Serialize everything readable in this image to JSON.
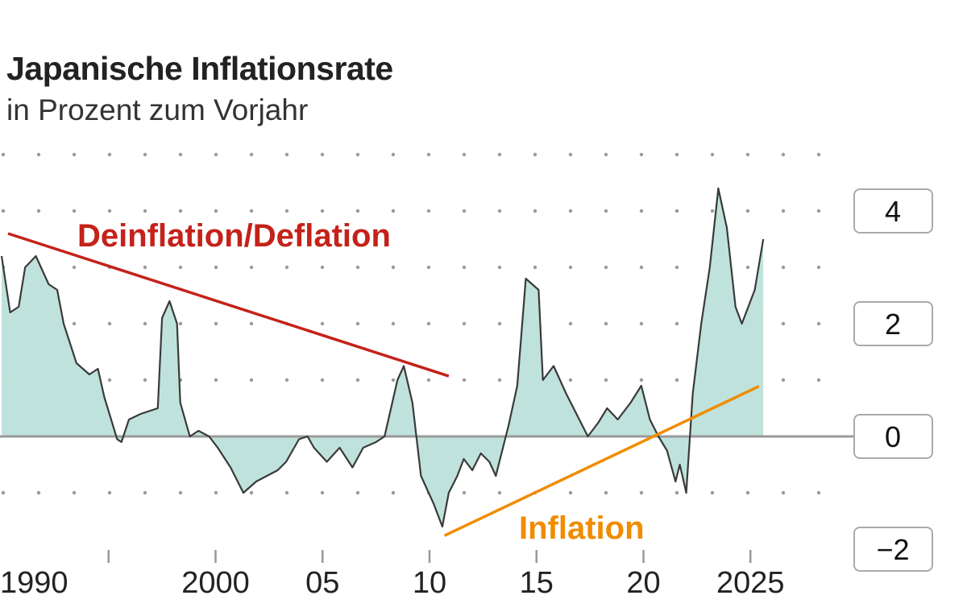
{
  "chart_data": {
    "type": "area",
    "title": "Japanische Inflationsrate",
    "subtitle": "in Prozent zum Vorjahr",
    "xlim": [
      1990,
      2027
    ],
    "ylim": [
      -2,
      5
    ],
    "y_ticks": [
      4,
      2,
      0,
      -2
    ],
    "y_tick_labels": [
      "4",
      "2",
      "0",
      "−2"
    ],
    "x_ticks": [
      1990,
      1995,
      2000,
      2005,
      2010,
      2015,
      2020,
      2025
    ],
    "x_tick_labels": [
      "1990",
      "",
      "2000",
      "05",
      "10",
      "15",
      "20",
      "2025"
    ],
    "grid": "dotted horizontal",
    "colors": {
      "fill": "#bfe3dc",
      "line": "#3a3a3a",
      "zero_line": "#9a9a9a",
      "deflation": "#c4221a",
      "inflation": "#f08c00"
    },
    "series": [
      {
        "x": [
          1990.0,
          1990.4,
          1990.8,
          1991.1,
          1991.6,
          1992.2,
          1992.6,
          1992.9,
          1993.5,
          1994.1,
          1994.5,
          1994.8,
          1995.4,
          1995.6,
          1995.95,
          1996.5,
          1996.9,
          1997.3,
          1997.5,
          1997.85,
          1998.2,
          1998.35,
          1998.8,
          1999.2,
          1999.7,
          2000.1,
          2000.7,
          2001.3,
          2001.9,
          2002.4,
          2002.9,
          2003.3,
          2003.9,
          2004.3,
          2004.6,
          2005.2,
          2005.8,
          2006.4,
          2006.9,
          2007.5,
          2007.9,
          2008.5,
          2008.8,
          2009.2,
          2009.6,
          2010.2,
          2010.6,
          2010.9,
          2011.3,
          2011.6,
          2012.0,
          2012.4,
          2012.8,
          2013.1,
          2013.7,
          2014.1,
          2014.5,
          2015.1,
          2015.3,
          2015.8,
          2016.4,
          2017.0,
          2017.4,
          2017.9,
          2018.3,
          2018.8,
          2019.4,
          2019.9,
          2020.3,
          2020.7,
          2021.1,
          2021.5,
          2021.7,
          2022.0,
          2022.3,
          2022.7,
          2023.1,
          2023.5,
          2023.9,
          2024.3,
          2024.6,
          2025.2,
          2025.6
        ],
        "y": [
          3.2,
          2.2,
          2.3,
          3.0,
          3.2,
          2.7,
          2.6,
          2.0,
          1.3,
          1.1,
          1.2,
          0.7,
          -0.05,
          -0.1,
          0.3,
          0.4,
          0.45,
          0.5,
          2.1,
          2.4,
          2.0,
          0.6,
          0.0,
          0.1,
          0.0,
          -0.2,
          -0.55,
          -1.0,
          -0.8,
          -0.7,
          -0.6,
          -0.45,
          -0.05,
          0.0,
          -0.2,
          -0.45,
          -0.2,
          -0.55,
          -0.2,
          -0.1,
          0.0,
          1.0,
          1.25,
          0.6,
          -0.7,
          -1.2,
          -1.6,
          -1.0,
          -0.7,
          -0.4,
          -0.6,
          -0.3,
          -0.45,
          -0.7,
          0.2,
          0.9,
          2.8,
          2.6,
          1.0,
          1.25,
          0.75,
          0.3,
          0.0,
          0.25,
          0.5,
          0.3,
          0.6,
          0.9,
          0.3,
          0.0,
          -0.25,
          -0.8,
          -0.5,
          -1.0,
          0.75,
          2.0,
          3.0,
          4.4,
          3.7,
          2.3,
          2.0,
          2.6,
          3.5
        ]
      }
    ],
    "annotations": [
      {
        "text": "Deinflation/Deflation",
        "color": "#c4221a",
        "line": [
          [
            1990.3,
            3.6
          ],
          [
            2010.9,
            1.07
          ]
        ]
      },
      {
        "text": "Inflation",
        "color": "#f08c00",
        "line": [
          [
            2010.7,
            -1.76
          ],
          [
            2025.4,
            0.89
          ]
        ]
      }
    ]
  }
}
